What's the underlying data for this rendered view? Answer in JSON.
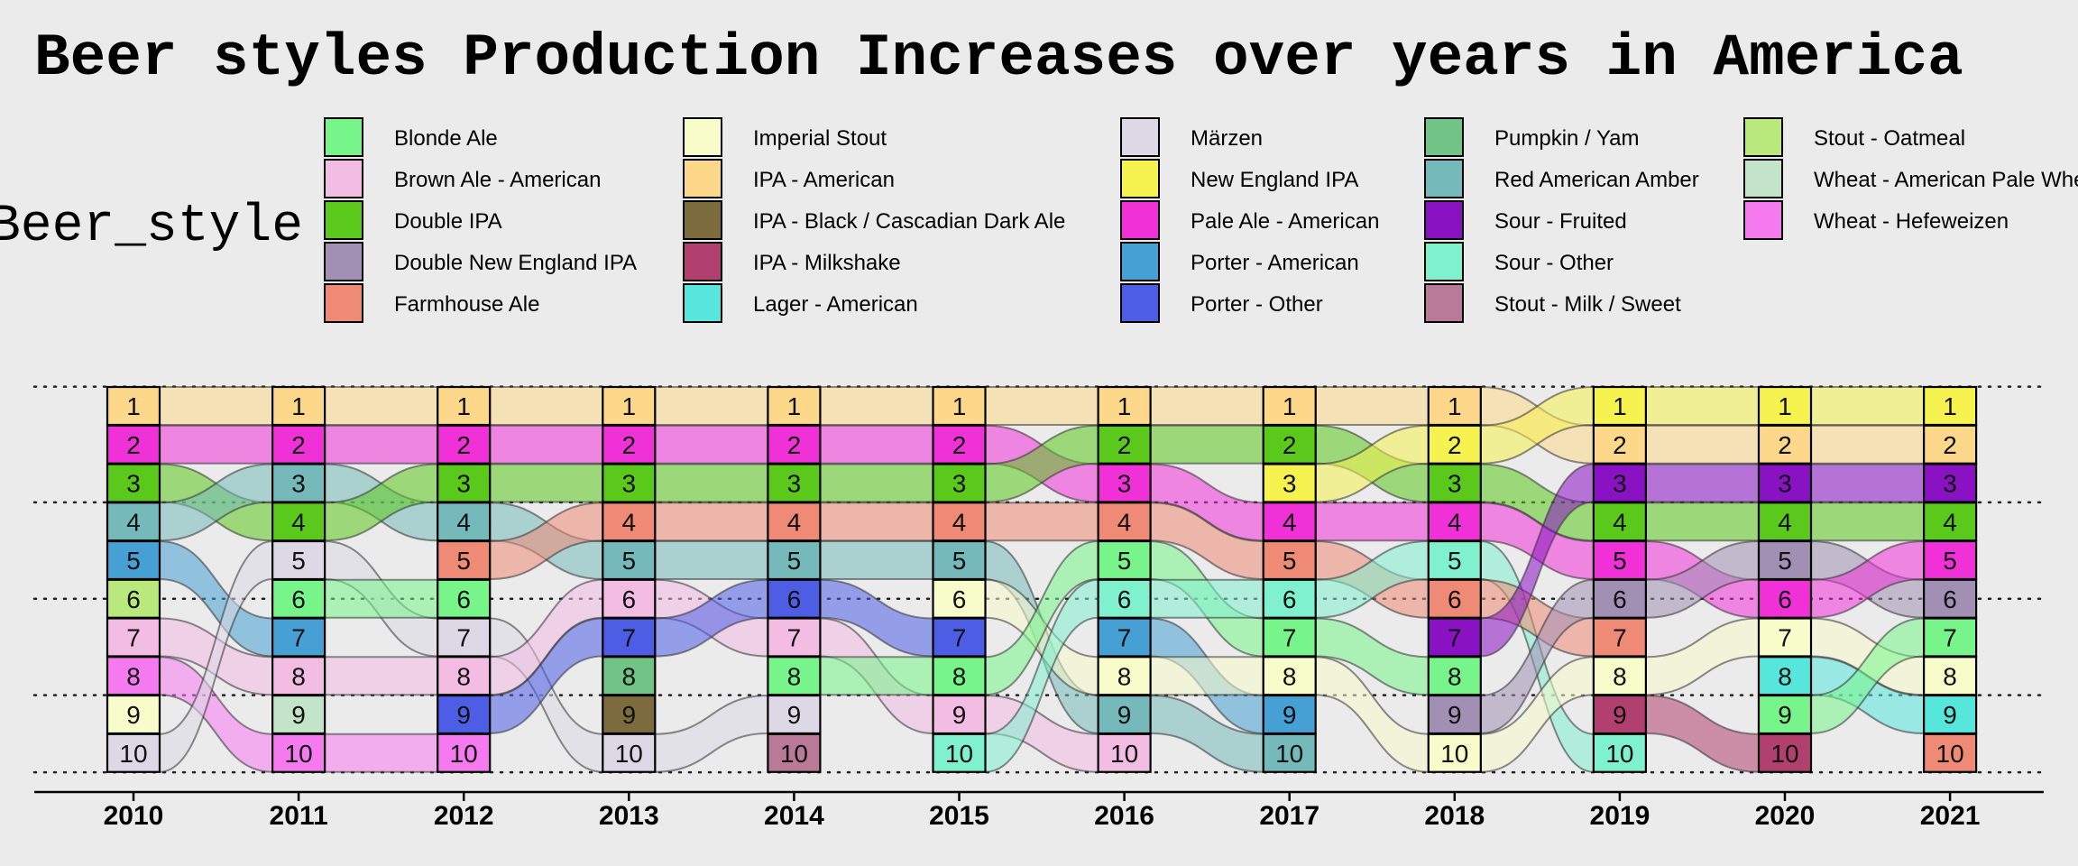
{
  "chart_data": {
    "type": "bump",
    "title": "Beer styles Production Increases over years in America",
    "legend_title": "Beer_style",
    "legend_position": "top",
    "x": [
      "2010",
      "2011",
      "2012",
      "2013",
      "2014",
      "2015",
      "2016",
      "2017",
      "2018",
      "2019",
      "2020",
      "2021"
    ],
    "y_axis": "rank (1 = top)",
    "styles": [
      {
        "name": "Blonde Ale",
        "color": "#77f58a"
      },
      {
        "name": "Brown Ale - American",
        "color": "#f2bce3"
      },
      {
        "name": "Double IPA",
        "color": "#5bc91c"
      },
      {
        "name": "Double New England IPA",
        "color": "#a18fb4"
      },
      {
        "name": "Farmhouse Ale",
        "color": "#ee8a75"
      },
      {
        "name": "Imperial Stout",
        "color": "#f8fccb"
      },
      {
        "name": "IPA - American",
        "color": "#fdd88b"
      },
      {
        "name": "IPA - Black / Cascadian Dark Ale",
        "color": "#7d6d3e"
      },
      {
        "name": "IPA - Milkshake",
        "color": "#b2406e"
      },
      {
        "name": "Lager - American",
        "color": "#56e6dc"
      },
      {
        "name": "Märzen",
        "color": "#dcd8e5"
      },
      {
        "name": "New England IPA",
        "color": "#f6f250"
      },
      {
        "name": "Pale Ale - American",
        "color": "#f031d7"
      },
      {
        "name": "Porter - American",
        "color": "#46a0d3"
      },
      {
        "name": "Porter - Other",
        "color": "#4d5ee5"
      },
      {
        "name": "Pumpkin / Yam",
        "color": "#72c486"
      },
      {
        "name": "Red American Amber",
        "color": "#75b9ba"
      },
      {
        "name": "Sour - Fruited",
        "color": "#8912c2"
      },
      {
        "name": "Sour - Other",
        "color": "#7ff1cd"
      },
      {
        "name": "Stout - Milk / Sweet",
        "color": "#b87a97"
      },
      {
        "name": "Stout - Oatmeal",
        "color": "#b9e97d"
      },
      {
        "name": "Wheat  - American Pale Wheat",
        "color": "#c3e4c8"
      },
      {
        "name": "Wheat  - Hefeweizen",
        "color": "#f57af0"
      }
    ],
    "rankings": {
      "2010": [
        "IPA - American",
        "Pale Ale - American",
        "Double IPA",
        "Red American Amber",
        "Porter - American",
        "Stout - Oatmeal",
        "Brown Ale - American",
        "Wheat  - Hefeweizen",
        "Imperial Stout",
        "Märzen"
      ],
      "2011": [
        "IPA - American",
        "Pale Ale - American",
        "Red American Amber",
        "Double IPA",
        "Märzen",
        "Blonde Ale",
        "Porter - American",
        "Brown Ale - American",
        "Wheat  - American Pale Wheat",
        "Wheat  - Hefeweizen"
      ],
      "2012": [
        "IPA - American",
        "Pale Ale - American",
        "Double IPA",
        "Red American Amber",
        "Farmhouse Ale",
        "Blonde Ale",
        "Märzen",
        "Brown Ale - American",
        "Porter - Other",
        "Wheat  - Hefeweizen"
      ],
      "2013": [
        "IPA - American",
        "Pale Ale - American",
        "Double IPA",
        "Farmhouse Ale",
        "Red American Amber",
        "Brown Ale - American",
        "Porter - Other",
        "Pumpkin / Yam",
        "IPA - Black / Cascadian Dark Ale",
        "Märzen"
      ],
      "2014": [
        "IPA - American",
        "Pale Ale - American",
        "Double IPA",
        "Farmhouse Ale",
        "Red American Amber",
        "Porter - Other",
        "Brown Ale - American",
        "Blonde Ale",
        "Märzen",
        "Stout - Milk / Sweet"
      ],
      "2015": [
        "IPA - American",
        "Pale Ale - American",
        "Double IPA",
        "Farmhouse Ale",
        "Red American Amber",
        "Imperial Stout",
        "Porter - Other",
        "Blonde Ale",
        "Brown Ale - American",
        "Sour - Other"
      ],
      "2016": [
        "IPA - American",
        "Double IPA",
        "Pale Ale - American",
        "Farmhouse Ale",
        "Blonde Ale",
        "Sour - Other",
        "Porter - American",
        "Imperial Stout",
        "Red American Amber",
        "Brown Ale - American"
      ],
      "2017": [
        "IPA - American",
        "Double IPA",
        "New England IPA",
        "Pale Ale - American",
        "Farmhouse Ale",
        "Sour - Other",
        "Blonde Ale",
        "Imperial Stout",
        "Porter - American",
        "Red American Amber"
      ],
      "2018": [
        "IPA - American",
        "New England IPA",
        "Double IPA",
        "Pale Ale - American",
        "Sour - Other",
        "Farmhouse Ale",
        "Sour - Fruited",
        "Blonde Ale",
        "Double New England IPA",
        "Imperial Stout"
      ],
      "2019": [
        "New England IPA",
        "IPA - American",
        "Sour - Fruited",
        "Double IPA",
        "Pale Ale - American",
        "Double New England IPA",
        "Farmhouse Ale",
        "Imperial Stout",
        "IPA - Milkshake",
        "Sour - Other"
      ],
      "2020": [
        "New England IPA",
        "IPA - American",
        "Sour - Fruited",
        "Double IPA",
        "Double New England IPA",
        "Pale Ale - American",
        "Imperial Stout",
        "Lager - American",
        "Blonde Ale",
        "IPA - Milkshake"
      ],
      "2021": [
        "New England IPA",
        "IPA - American",
        "Sour - Fruited",
        "Double IPA",
        "Pale Ale - American",
        "Double New England IPA",
        "Blonde Ale",
        "Imperial Stout",
        "Lager - American",
        "Farmhouse Ale"
      ]
    },
    "grid": "dotted at ranks 1, 3.5, 6, 8.5, 11"
  }
}
